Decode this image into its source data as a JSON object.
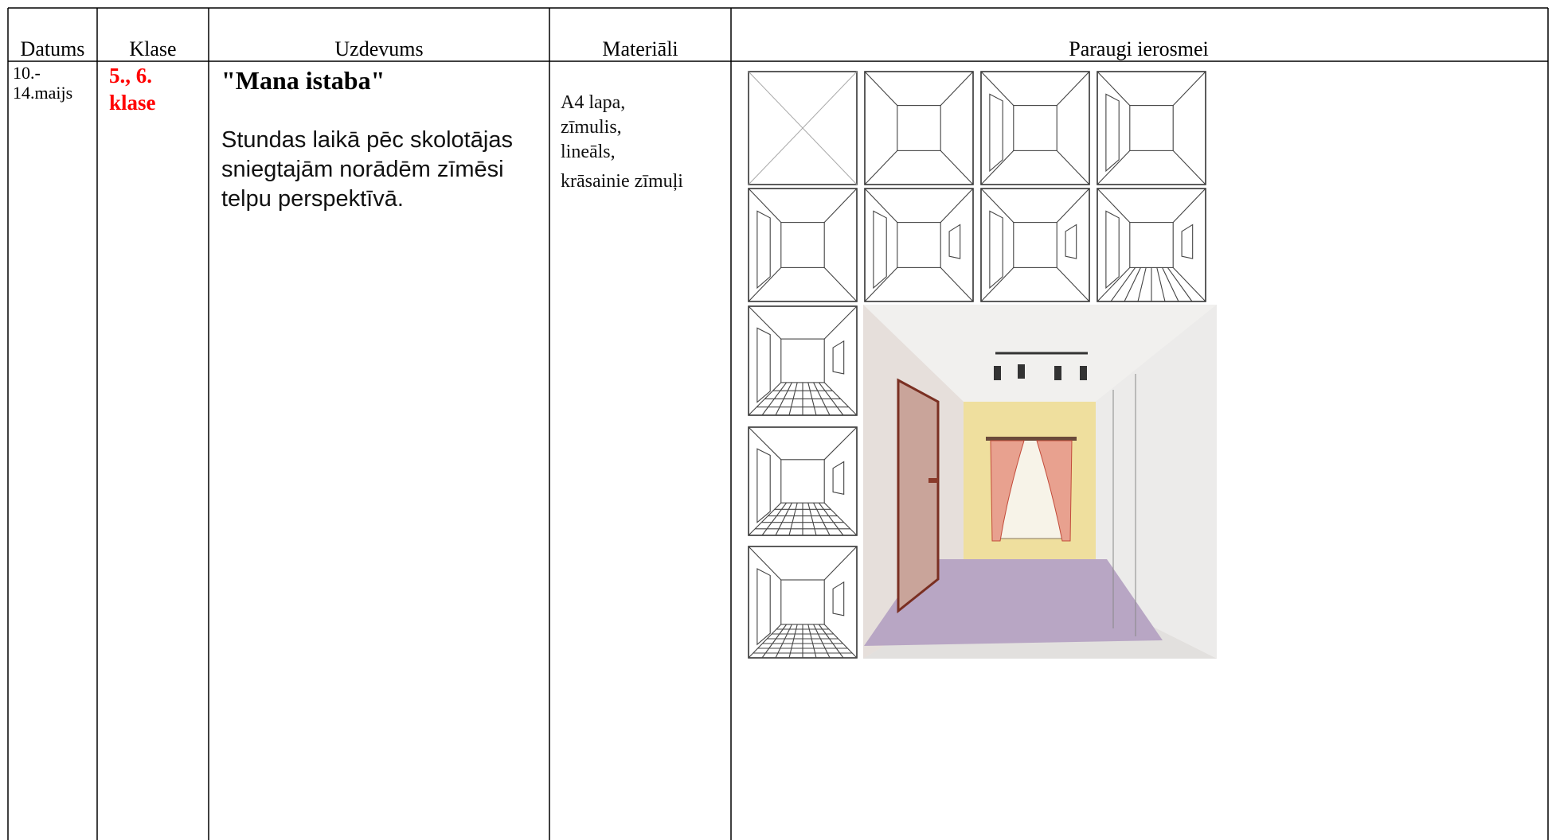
{
  "header": {
    "date": "Datums",
    "class": "Klase",
    "task": "Uzdevums",
    "materials": "Materiāli",
    "examples": "Paraugi ierosmei"
  },
  "row": {
    "date": [
      "10.-",
      "14.maijs"
    ],
    "class": [
      "5., 6.",
      "klase"
    ],
    "task_title": "\"Mana istaba\"",
    "task_text": [
      "Stundas laikā pēc skolotājas",
      "sniegtajām norādēm  zīmēsi",
      "telpu perspektīvā."
    ],
    "materials": [
      "A4 lapa,",
      "zīmulis,",
      "lineāls,",
      "krāsainie zīmuļi"
    ]
  }
}
